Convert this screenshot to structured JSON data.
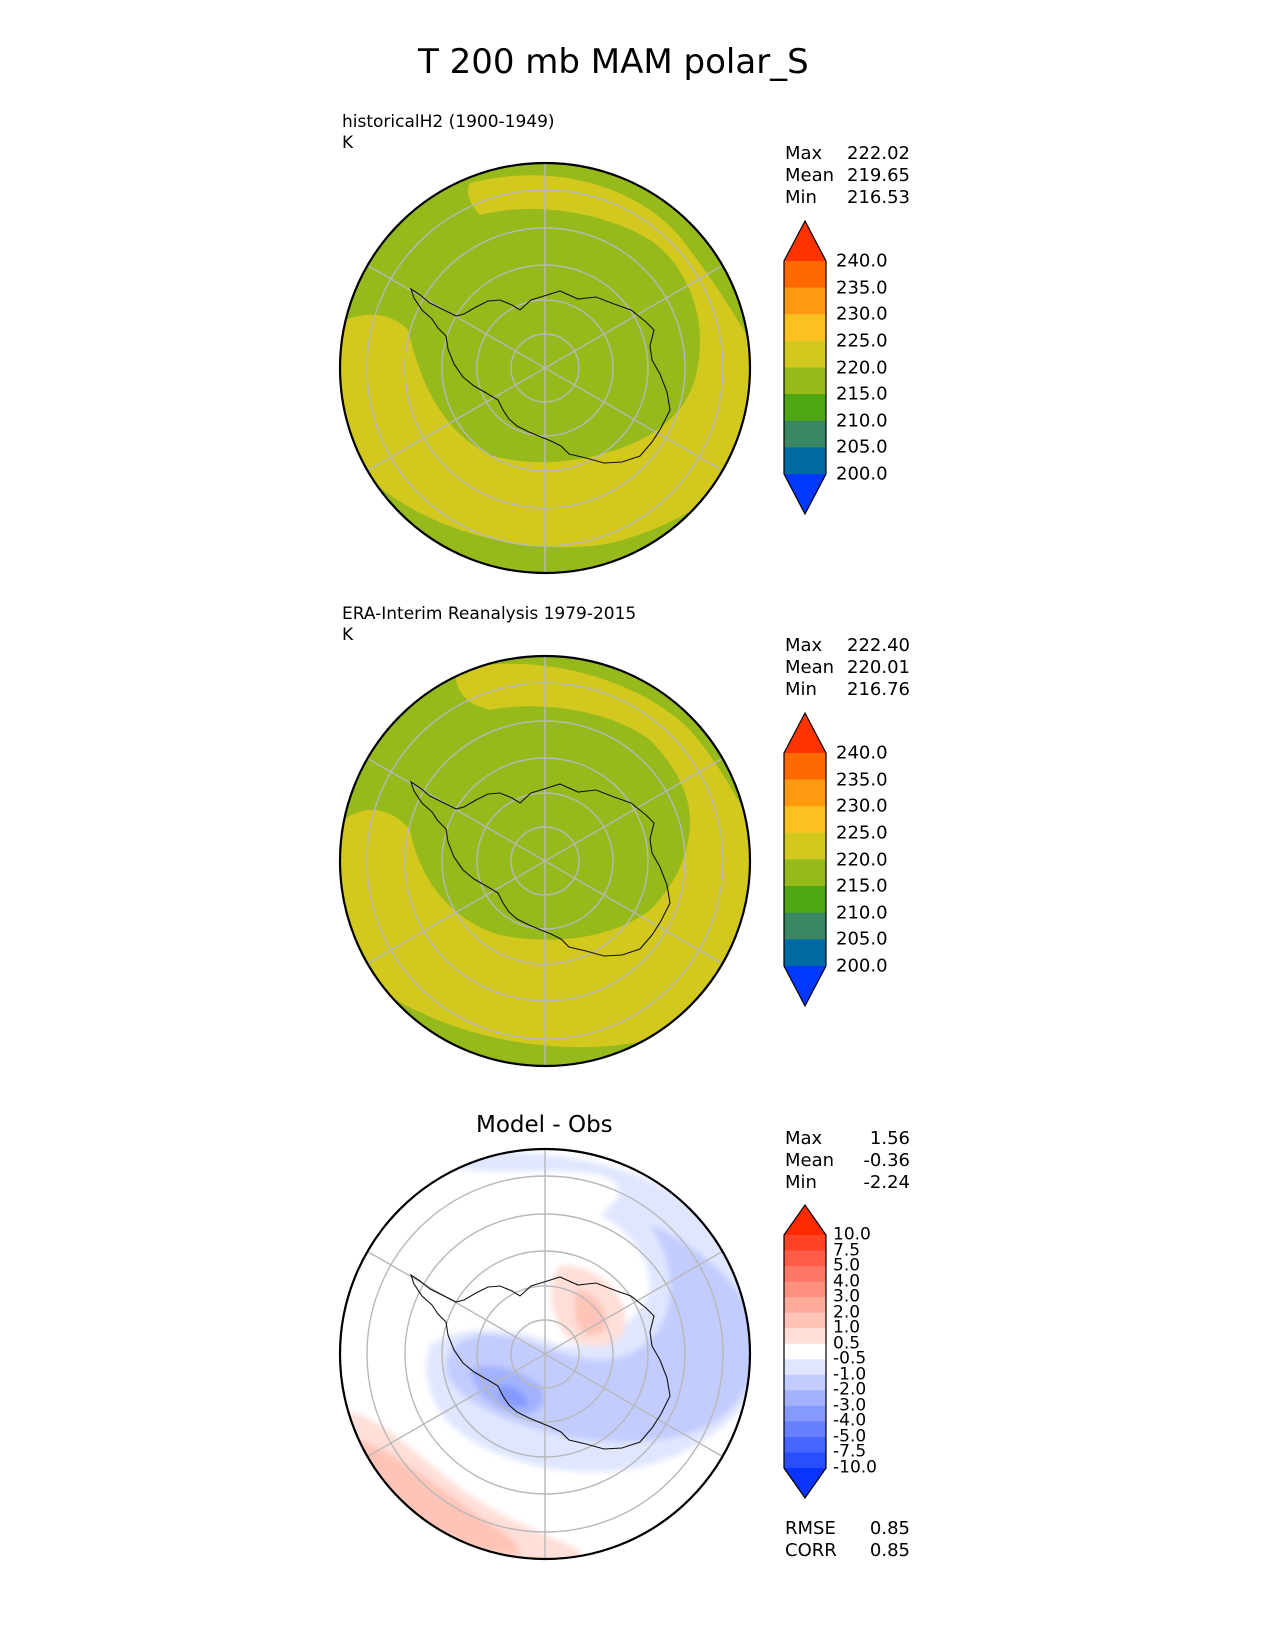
{
  "figure": {
    "title": "T 200 mb MAM polar_S"
  },
  "panels": [
    {
      "id": "test",
      "title": "historicalH2 (1900-1949)",
      "units": "K",
      "stats": {
        "max_label": "Max",
        "max": "222.02",
        "mean_label": "Mean",
        "mean": "219.65",
        "min_label": "Min",
        "min": "216.53"
      }
    },
    {
      "id": "reference",
      "title": "ERA-Interim Reanalysis 1979-2015",
      "units": "K",
      "stats": {
        "max_label": "Max",
        "max": "222.40",
        "mean_label": "Mean",
        "mean": "220.01",
        "min_label": "Min",
        "min": "216.76"
      }
    },
    {
      "id": "diff",
      "title": "Model - Obs",
      "stats": {
        "max_label": "Max",
        "max": "1.56",
        "mean_label": "Mean",
        "mean": "-0.36",
        "min_label": "Min",
        "min": "-2.24"
      },
      "metrics": {
        "rmse_label": "RMSE",
        "rmse": "0.85",
        "corr_label": "CORR",
        "corr": "0.85"
      }
    }
  ],
  "colorbars": {
    "absolute": {
      "ticks": [
        "240.0",
        "235.0",
        "230.0",
        "225.0",
        "220.0",
        "215.0",
        "210.0",
        "205.0",
        "200.0"
      ],
      "colors_top_to_bottom": [
        "#ff3300",
        "#ff6a00",
        "#ff9a10",
        "#fcc020",
        "#d2c81e",
        "#96b91b",
        "#4ea610",
        "#3b8663",
        "#006aa2",
        "#0038ff"
      ]
    },
    "difference": {
      "ticks": [
        "10.0",
        "7.5",
        "5.0",
        "4.0",
        "3.0",
        "2.0",
        "1.0",
        "0.5",
        "-0.5",
        "-1.0",
        "-2.0",
        "-3.0",
        "-4.0",
        "-5.0",
        "-7.5",
        "-10.0"
      ],
      "colors_top_to_bottom": [
        "#ff2a00",
        "#ff4426",
        "#ff5d47",
        "#ff7766",
        "#ff9080",
        "#ffaa9a",
        "#ffc4b8",
        "#ffdfd8",
        "#ffffff",
        "#e0e6ff",
        "#c2ccff",
        "#a3b2ff",
        "#8599ff",
        "#6680ff",
        "#4766ff",
        "#294dff",
        "#0a33ff"
      ]
    }
  },
  "chart_data": [
    {
      "type": "heatmap",
      "projection": "south-polar-stereographic",
      "title": "historicalH2 (1900-1949)",
      "units": "K",
      "variable": "T 200 mb MAM",
      "stats": {
        "max": 222.02,
        "mean": 219.65,
        "min": 216.53
      },
      "levels": [
        200,
        205,
        210,
        215,
        220,
        225,
        230,
        235,
        240
      ],
      "extend": "both",
      "field_bands": {
        "polar_cap": "215-220",
        "midlatitude_ring": "220-225",
        "outer_ring": "215-220"
      }
    },
    {
      "type": "heatmap",
      "projection": "south-polar-stereographic",
      "title": "ERA-Interim Reanalysis 1979-2015",
      "units": "K",
      "variable": "T 200 mb MAM",
      "stats": {
        "max": 222.4,
        "mean": 220.01,
        "min": 216.76
      },
      "levels": [
        200,
        205,
        210,
        215,
        220,
        225,
        230,
        235,
        240
      ],
      "extend": "both",
      "field_bands": {
        "polar_cap": "215-220",
        "midlatitude_ring": "220-225",
        "outer_ring": "215-220"
      }
    },
    {
      "type": "heatmap",
      "projection": "south-polar-stereographic",
      "title": "Model - Obs",
      "stats": {
        "max": 1.56,
        "mean": -0.36,
        "min": -2.24
      },
      "metrics": {
        "rmse": 0.85,
        "corr": 0.85
      },
      "levels": [
        -10,
        -7.5,
        -5,
        -4,
        -3,
        -2,
        -1,
        -0.5,
        0.5,
        1,
        2,
        3,
        4,
        5,
        7.5,
        10
      ],
      "extend": "both"
    }
  ]
}
